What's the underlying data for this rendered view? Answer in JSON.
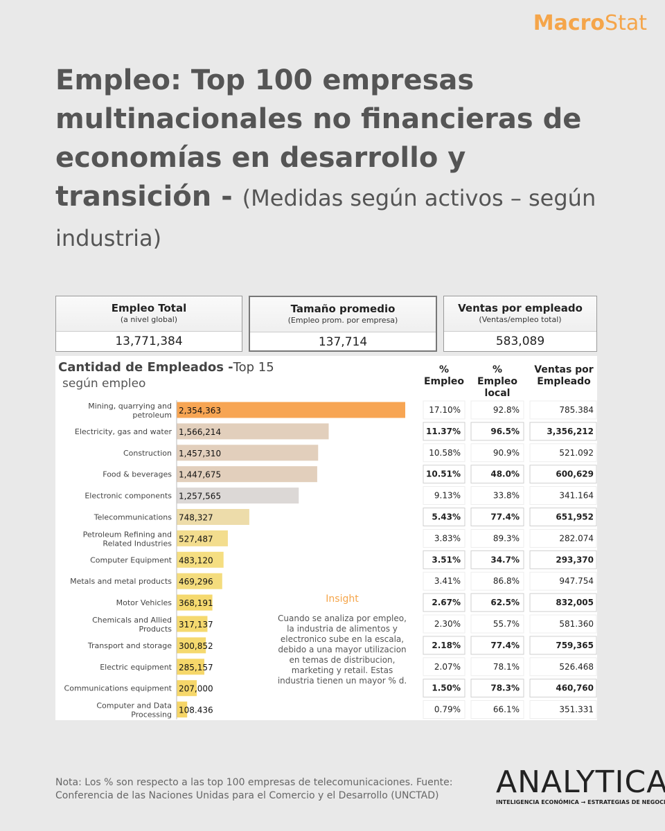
{
  "brand": {
    "macro": "Macro",
    "stat": "Stat"
  },
  "title": {
    "main": "Empleo: Top 100 empresas multinacionales no financieras de economías en desarrollo y transición",
    "sep": " - ",
    "sub": "(Medidas según activos – según industria)"
  },
  "kpis": [
    {
      "label": "Empleo Total",
      "sublabel": "(a nivel global)",
      "value": "13,771,384"
    },
    {
      "label": "Tamaño promedio",
      "sublabel": "(Empleo prom. por empresa)",
      "value": "137,714"
    },
    {
      "label": "Ventas por empleado",
      "sublabel": "(Ventas/empleo total)",
      "value": "583,089"
    }
  ],
  "chart_data": {
    "type": "bar",
    "orientation": "horizontal",
    "title": "Cantidad de Empleados -",
    "title_suffix": "Top 15",
    "subtitle": "según empleo",
    "categories": [
      "Mining, quarrying and petroleum",
      "Electricity, gas and water",
      "Construction",
      "Food & beverages",
      "Electronic components",
      "Telecommunications",
      "Petroleum Refining and Related Industries",
      "Computer Equipment",
      "Metals and metal products",
      "Motor Vehicles",
      "Chemicals and Allied Products",
      "Transport and storage",
      "Electric equipment",
      "Communications equipment",
      "Computer and Data Processing"
    ],
    "values": [
      2354363,
      1566214,
      1457310,
      1447675,
      1257565,
      748327,
      527487,
      483120,
      469296,
      368191,
      317137,
      300852,
      285157,
      207000,
      108436
    ],
    "value_labels": [
      "2,354,363",
      "1,566,214",
      "1,457,310",
      "1,447,675",
      "1,257,565",
      "748,327",
      "527,487",
      "483,120",
      "469,296",
      "368,191",
      "317,137",
      "300,852",
      "285,157",
      "207,000",
      "108.436"
    ],
    "colors": [
      "#f7a553",
      "#e2cfbc",
      "#e2cfbc",
      "#e2cfbc",
      "#dcd8d6",
      "#eddcaa",
      "#f3dd8e",
      "#f5de81",
      "#f4dc7d",
      "#f5d96f",
      "#f5d96f",
      "#f5d96f",
      "#f6d76a",
      "#f6d76a",
      "#f6d567"
    ],
    "xlim": [
      0,
      2354363
    ],
    "table": {
      "headers": [
        "% Empleo",
        "% Empleo local",
        "Ventas por Empleado"
      ],
      "rows": [
        [
          "17.10%",
          "92.8%",
          "785.384"
        ],
        [
          "11.37%",
          "96.5%",
          "3,356,212"
        ],
        [
          "10.58%",
          "90.9%",
          "521.092"
        ],
        [
          "10.51%",
          "48.0%",
          "600,629"
        ],
        [
          "9.13%",
          "33.8%",
          "341.164"
        ],
        [
          "5.43%",
          "77.4%",
          "651,952"
        ],
        [
          "3.83%",
          "89.3%",
          "282.074"
        ],
        [
          "3.51%",
          "34.7%",
          "293,370"
        ],
        [
          "3.41%",
          "86.8%",
          "947.754"
        ],
        [
          "2.67%",
          "62.5%",
          "832,005"
        ],
        [
          "2.30%",
          "55.7%",
          "581.360"
        ],
        [
          "2.18%",
          "77.4%",
          "759,365"
        ],
        [
          "2.07%",
          "78.1%",
          "526.468"
        ],
        [
          "1.50%",
          "78.3%",
          "460,760"
        ],
        [
          "0.79%",
          "66.1%",
          "351.331"
        ]
      ]
    },
    "insight": {
      "heading": "Insight",
      "lines": [
        "Cuando se analiza por empleo,",
        "la industria de alimentos y",
        "electronico sube en la escala,",
        "debido a una mayor utilizacion",
        "en temas de distribucion,",
        "marketing y retail. Estas",
        "industria tienen un mayor % d."
      ]
    }
  },
  "footer": "Nota: Los % son respecto a las top 100 empresas de telecomunicaciones. Fuente: Conferencia de las Naciones Unidas para el Comercio y el Desarrollo (UNCTAD)",
  "logo": {
    "word": "ANALYTICA",
    "tagline": "INTELIGENCIA ECONÓMICA → ESTRATEGIAS DE NEGOCIO"
  },
  "colors": {
    "accent": "#f5a54a",
    "text": "#555555",
    "background": "#e9e9e9"
  }
}
